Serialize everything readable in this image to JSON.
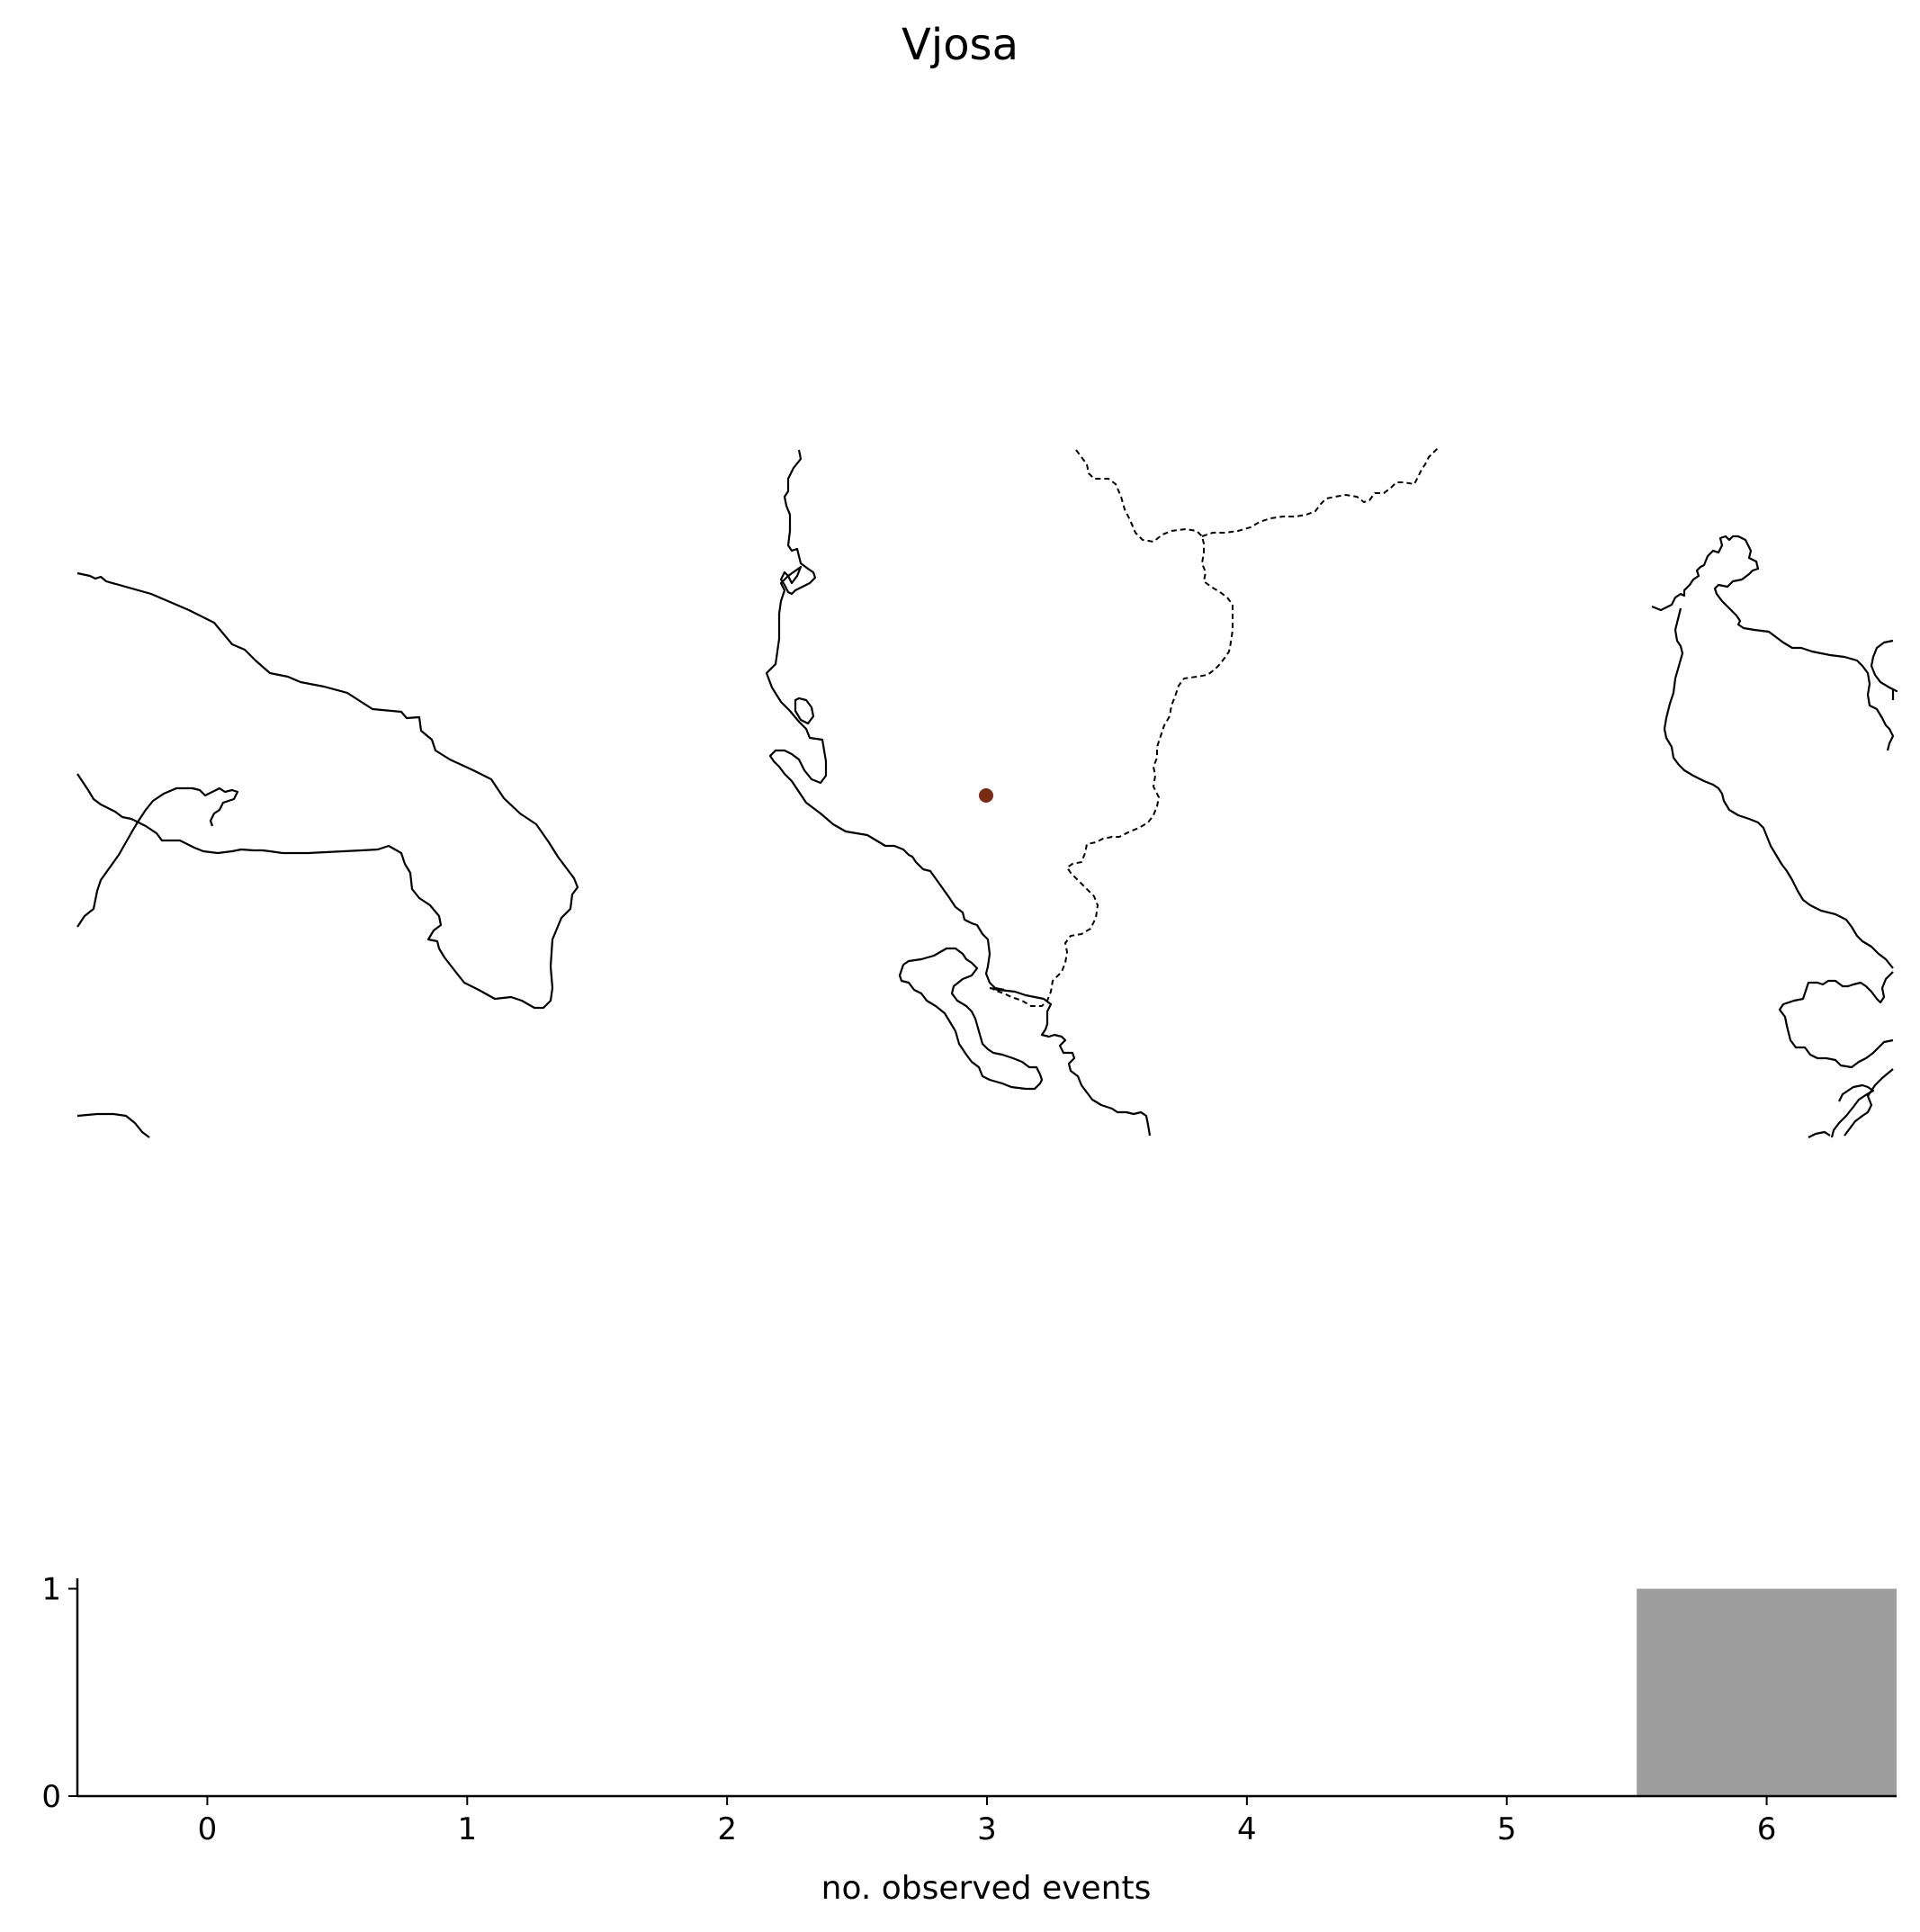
{
  "title": "Vjosa",
  "map": {
    "marker_color": "#7a2a10",
    "coast_color": "#000000",
    "border_style": "dashed"
  },
  "chart_data": {
    "type": "bar",
    "x": [
      6
    ],
    "values": [
      1
    ],
    "bar_color": "#9e9e9e",
    "xlabel": "no. observed events",
    "ylabel": "",
    "xlim": [
      -0.5,
      6.5
    ],
    "ylim": [
      0,
      1.05
    ],
    "xticks": [
      "0",
      "1",
      "2",
      "3",
      "4",
      "5",
      "6"
    ],
    "yticks": [
      "0",
      "1"
    ]
  }
}
